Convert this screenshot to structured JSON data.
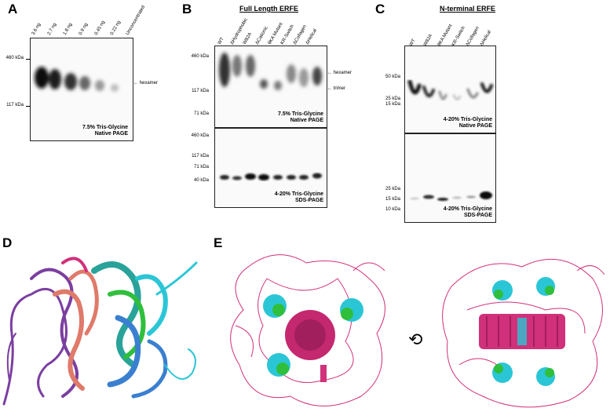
{
  "panels": {
    "A": {
      "label": "A",
      "lanes": [
        "3.6 ng",
        "2.7 ng",
        "1.8 ng",
        "0.9 ng",
        "0.45 ng",
        "0.22 ng",
        "Unconcentrated"
      ],
      "mw_labels": [
        "460 kDa",
        "117 kDa"
      ],
      "arrow_label": "hexamer",
      "caption_line1": "7.5%  Tris-Glycine",
      "caption_line2": "Native PAGE"
    },
    "B": {
      "label": "B",
      "title": "Full Length ERFE",
      "lanes": [
        "WT",
        "ΔHydrophobic",
        "W82A",
        "ΔCationic",
        "θKA Mutant",
        "KR-Switch",
        "ΔCollagen",
        "ΔHelical"
      ],
      "top_mw_labels": [
        "460 kDa",
        "117 kDa",
        "71 kDa"
      ],
      "top_arrows": [
        "hexamer",
        "trimer"
      ],
      "top_caption_line1": "7.5%  Tris-Glycine",
      "top_caption_line2": "Native PAGE",
      "bottom_mw_labels": [
        "460 kDa",
        "117 kDa",
        "71 kDa",
        "40 kDa"
      ],
      "bottom_caption_line1": "4-20%  Tris-Glycine",
      "bottom_caption_line2": "SDS-PAGE"
    },
    "C": {
      "label": "C",
      "title": "N-terminal ERFE",
      "lanes": [
        "WT",
        "W82A",
        "θKA Mutant",
        "KR-Switch",
        "ΔCollagen",
        "ΔHelical"
      ],
      "top_mw_labels": [
        "50 kDa",
        "25 kDa",
        "15 kDa"
      ],
      "top_caption_line1": "4-20%  Tris-Glycine",
      "top_caption_line2": "Native PAGE",
      "bottom_mw_labels": [
        "25 kDa",
        "15 kDa",
        "10 kDa"
      ],
      "bottom_caption_line1": "4-20%  Tris-Glycine",
      "bottom_caption_line2": "SDS-PAGE"
    },
    "D": {
      "label": "D"
    },
    "E": {
      "label": "E"
    }
  },
  "colors": {
    "magenta": "#d1307a",
    "cyan": "#2bc6d6",
    "green": "#2fbf3c",
    "purple": "#7b3fa0",
    "salmon": "#e07a6a",
    "teal": "#29a39a",
    "blue": "#3a7fd0"
  }
}
